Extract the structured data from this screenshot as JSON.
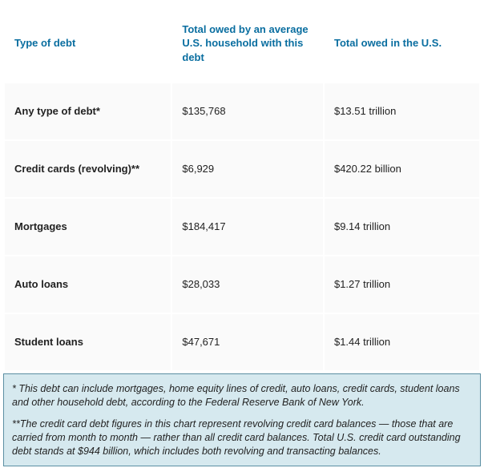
{
  "table": {
    "columns": [
      "Type of debt",
      "Total owed by an average U.S. household with this debt",
      "Total owed in the U.S."
    ],
    "rows": [
      {
        "type": "Any type of debt*",
        "household": "$135,768",
        "us_total": "$13.51 trillion"
      },
      {
        "type": "Credit cards (revolving)**",
        "household": "$6,929",
        "us_total": "$420.22 billion"
      },
      {
        "type": "Mortgages",
        "household": "$184,417",
        "us_total": "$9.14 trillion"
      },
      {
        "type": "Auto loans",
        "household": "$28,033",
        "us_total": "$1.27 trillion"
      },
      {
        "type": "Student loans",
        "household": "$47,671",
        "us_total": "$1.44 trillion"
      }
    ],
    "colors": {
      "header_text": "#0a6ea0",
      "cell_bg": "#fafafa",
      "footnote_bg": "#d6e9ef",
      "footnote_border": "#5b8fa3",
      "body_text": "#222222"
    }
  },
  "footnotes": {
    "note1": "* This debt can include mortgages, home equity lines of credit, auto loans, credit cards, student loans and other household debt, according to the Federal Reserve Bank of New York.",
    "note2": "**The credit card debt figures in this chart represent revolving credit card balances — those that are carried from month to month — rather than all credit card balances. Total U.S. credit card outstanding debt stands at $944 billion, which includes both revolving and transacting balances."
  }
}
